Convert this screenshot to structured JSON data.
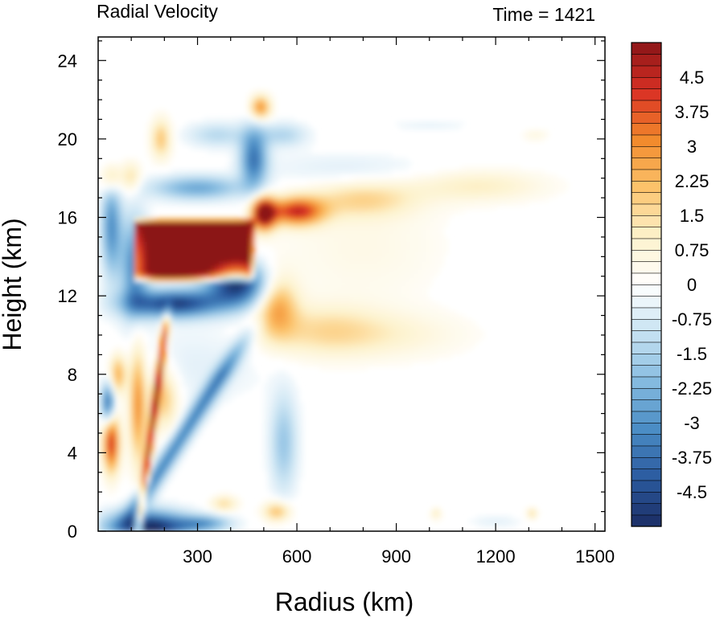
{
  "chart_data": {
    "type": "heatmap",
    "title": "Radial Velocity",
    "subtitle": "Time = 1421",
    "xlabel": "Radius (km)",
    "ylabel": "Height (km)",
    "xlim": [
      0,
      1530
    ],
    "ylim": [
      0,
      25.2
    ],
    "x_ticks": [
      300,
      600,
      900,
      1200,
      1500
    ],
    "y_ticks": [
      0,
      4,
      8,
      12,
      16,
      20,
      24
    ],
    "x_tick_labels": [
      "300",
      "600",
      "900",
      "1200",
      "1500"
    ],
    "y_tick_labels": [
      "0",
      "4",
      "8",
      "12",
      "16",
      "20",
      "24"
    ],
    "colorbar": {
      "min": -5.25,
      "max": 5.25,
      "step": 0.25,
      "labels": [
        "4.5",
        "3.75",
        "3",
        "2.25",
        "1.5",
        "0.75",
        "0",
        "-0.75",
        "-1.5",
        "-2.25",
        "-3",
        "-3.75",
        "-4.5"
      ],
      "label_values": [
        4.5,
        3.75,
        3,
        2.25,
        1.5,
        0.75,
        0,
        -0.75,
        -1.5,
        -2.25,
        -3,
        -3.75,
        -4.5
      ],
      "palette": [
        "#1b2d64",
        "#2b5a9f",
        "#4a8cc4",
        "#85bbe0",
        "#c7e2f2",
        "#ffffff",
        "#fdf2cc",
        "#fcc36b",
        "#f28a2c",
        "#d93024",
        "#8b1517"
      ]
    },
    "features": [
      {
        "description": "upper-level outflow core",
        "r_range": [
          100,
          490
        ],
        "z_range": [
          12.5,
          16
        ],
        "value": 5.25
      },
      {
        "description": "outflow extension",
        "r_range": [
          490,
          640
        ],
        "z_range": [
          16.0,
          17.0
        ],
        "value": 4.5
      },
      {
        "description": "outflow plume",
        "r_range": [
          640,
          1290
        ],
        "z_range": [
          16.5,
          18
        ],
        "value": 1.2
      },
      {
        "description": "mid-level outflow",
        "r_range": [
          430,
          620
        ],
        "z_range": [
          9.5,
          13.5
        ],
        "value": 2.5
      },
      {
        "description": "mid-level inflow below outflow",
        "r_range": [
          100,
          300
        ],
        "z_range": [
          10.5,
          12.5
        ],
        "value": -4.5
      },
      {
        "description": "boundary layer inflow",
        "r_range": [
          20,
          300
        ],
        "z_range": [
          0,
          1
        ],
        "value": -5.0
      },
      {
        "description": "eyewall tilted inflow band",
        "r_range": [
          80,
          380
        ],
        "z_range": [
          1,
          12
        ],
        "value": -3.0
      },
      {
        "description": "low-level outflow near eye",
        "r_range": [
          0,
          110
        ],
        "z_range": [
          1.5,
          6.5
        ],
        "value": 4.0
      },
      {
        "description": "upper inflow band",
        "r_range": [
          130,
          480
        ],
        "z_range": [
          16.5,
          21
        ],
        "value": -3.5
      }
    ]
  }
}
